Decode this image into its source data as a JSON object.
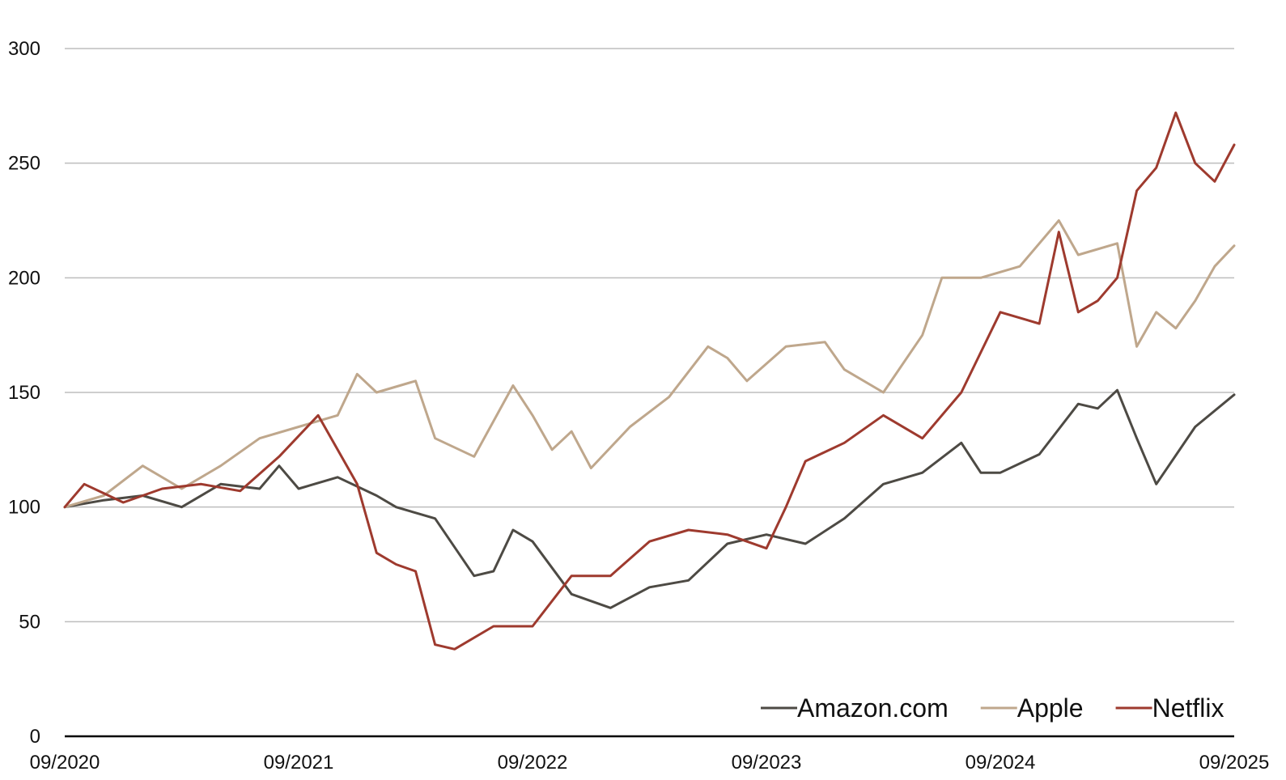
{
  "chart_data": {
    "type": "line",
    "title": "",
    "xlabel": "",
    "ylabel": "",
    "x_tick_labels": [
      "09/2020",
      "09/2021",
      "09/2022",
      "09/2023",
      "09/2024",
      "09/2025"
    ],
    "y_tick_labels": [
      "0",
      "50",
      "100",
      "150",
      "200",
      "250",
      "300"
    ],
    "ylim": [
      0,
      300
    ],
    "grid": "horizontal",
    "legend_position": "bottom-right",
    "series": [
      {
        "name": "Amazon.com",
        "color": "#4d4a44",
        "x": [
          "2020-09",
          "2020-11",
          "2021-01",
          "2021-03",
          "2021-05",
          "2021-07",
          "2021-08",
          "2021-09",
          "2021-11",
          "2022-01",
          "2022-02",
          "2022-04",
          "2022-06",
          "2022-07",
          "2022-08",
          "2022-09",
          "2022-11",
          "2023-01",
          "2023-03",
          "2023-05",
          "2023-07",
          "2023-09",
          "2023-11",
          "2024-01",
          "2024-03",
          "2024-05",
          "2024-07",
          "2024-08",
          "2024-09",
          "2024-11",
          "2025-01",
          "2025-02",
          "2025-03",
          "2025-04",
          "2025-05",
          "2025-07",
          "2025-09"
        ],
        "values": [
          100,
          103,
          105,
          100,
          110,
          108,
          118,
          108,
          113,
          105,
          100,
          95,
          70,
          72,
          90,
          85,
          62,
          56,
          65,
          68,
          84,
          88,
          84,
          95,
          110,
          115,
          128,
          115,
          115,
          123,
          145,
          143,
          151,
          130,
          110,
          135,
          149
        ]
      },
      {
        "name": "Apple",
        "color": "#bfa78c",
        "x": [
          "2020-09",
          "2020-11",
          "2021-01",
          "2021-03",
          "2021-05",
          "2021-07",
          "2021-09",
          "2021-11",
          "2021-12",
          "2022-01",
          "2022-03",
          "2022-04",
          "2022-06",
          "2022-08",
          "2022-09",
          "2022-10",
          "2022-11",
          "2022-12",
          "2023-02",
          "2023-04",
          "2023-06",
          "2023-07",
          "2023-08",
          "2023-10",
          "2023-12",
          "2024-01",
          "2024-03",
          "2024-05",
          "2024-06",
          "2024-08",
          "2024-10",
          "2024-12",
          "2025-01",
          "2025-03",
          "2025-04",
          "2025-05",
          "2025-06",
          "2025-07",
          "2025-08",
          "2025-09"
        ],
        "values": [
          100,
          105,
          118,
          108,
          118,
          130,
          135,
          140,
          158,
          150,
          155,
          130,
          122,
          153,
          140,
          125,
          133,
          117,
          135,
          148,
          170,
          165,
          155,
          170,
          172,
          160,
          150,
          175,
          200,
          200,
          205,
          225,
          210,
          215,
          170,
          185,
          178,
          190,
          205,
          214
        ]
      },
      {
        "name": "Netflix",
        "color": "#9e3a2e",
        "x": [
          "2020-09",
          "2020-10",
          "2020-12",
          "2021-02",
          "2021-04",
          "2021-06",
          "2021-08",
          "2021-10",
          "2021-11",
          "2021-12",
          "2022-01",
          "2022-02",
          "2022-03",
          "2022-04",
          "2022-05",
          "2022-07",
          "2022-09",
          "2022-11",
          "2023-01",
          "2023-03",
          "2023-05",
          "2023-07",
          "2023-09",
          "2023-10",
          "2023-11",
          "2024-01",
          "2024-03",
          "2024-05",
          "2024-07",
          "2024-09",
          "2024-11",
          "2024-12",
          "2025-01",
          "2025-02",
          "2025-03",
          "2025-04",
          "2025-05",
          "2025-06",
          "2025-07",
          "2025-08",
          "2025-09"
        ],
        "values": [
          100,
          110,
          102,
          108,
          110,
          107,
          122,
          140,
          125,
          110,
          80,
          75,
          72,
          40,
          38,
          48,
          48,
          70,
          70,
          85,
          90,
          88,
          82,
          100,
          120,
          128,
          140,
          130,
          150,
          185,
          180,
          220,
          185,
          190,
          200,
          238,
          248,
          272,
          250,
          242,
          258
        ]
      }
    ]
  }
}
